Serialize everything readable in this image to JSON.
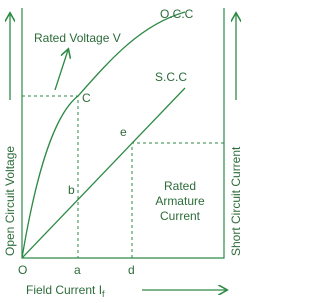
{
  "labels": {
    "occ": "O.C.C",
    "scc": "S.C.C",
    "rated_voltage": "Rated Voltage V",
    "point_c": "C",
    "point_e": "e",
    "point_b": "b",
    "rated_current": [
      "Rated",
      "Armature",
      "Current"
    ],
    "origin": "O",
    "point_a": "a",
    "point_d": "d",
    "x_axis": "Field Current I",
    "x_axis_sub": "f",
    "y_axis_left": "Open Circuit Voltage",
    "y_axis_right": "Short Circuit Current"
  }
}
